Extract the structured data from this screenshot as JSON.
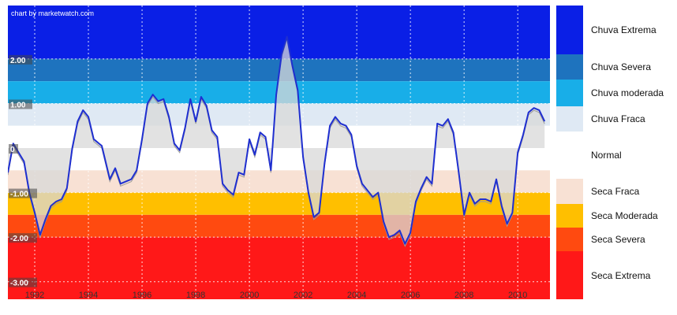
{
  "chart_data": {
    "type": "line",
    "watermark": "chart by marketwatch.com",
    "xlim": [
      1991,
      2011.2
    ],
    "ylim": [
      -3.2,
      3.2
    ],
    "x_ticks": [
      1992,
      1994,
      1996,
      1998,
      2000,
      2002,
      2004,
      2006,
      2008,
      2010
    ],
    "x_tick_labels": [
      "1992",
      "1994",
      "1996",
      "1998",
      "2000",
      "2002",
      "2004",
      "2006",
      "2008",
      "2010"
    ],
    "y_ticks": [
      2.0,
      1.0,
      0,
      -1.0,
      -2.0,
      -3.0
    ],
    "y_tick_labels": [
      "2.00",
      "1.00",
      "0",
      "-1.00",
      "-2.00",
      "-3.00"
    ],
    "grid": true,
    "bands": [
      {
        "label": "Chuva Extrema",
        "from": 2.0,
        "to": 3.2,
        "color": "#0a1fe6"
      },
      {
        "label": "Chuva Severa",
        "from": 1.5,
        "to": 2.0,
        "color": "#1e73be"
      },
      {
        "label": "Chuva moderada",
        "from": 1.0,
        "to": 1.5,
        "color": "#18aee8"
      },
      {
        "label": "Chuva Fraca",
        "from": 0.5,
        "to": 1.0,
        "color": "#dfe9f4"
      },
      {
        "label": "Normal",
        "from": -0.5,
        "to": 0.5,
        "color": "#ffffff"
      },
      {
        "label": "Seca Fraca",
        "from": -1.0,
        "to": -0.5,
        "color": "#f8e1d4"
      },
      {
        "label": "Seca Moderada",
        "from": -1.5,
        "to": -1.0,
        "color": "#ffbf00"
      },
      {
        "label": "Seca Severa",
        "from": -2.0,
        "to": -1.5,
        "color": "#ff4a10"
      },
      {
        "label": "Seca Extrema",
        "from": -3.2,
        "to": -2.0,
        "color": "#ff1818"
      }
    ],
    "series": [
      {
        "color": "#1f2fd0",
        "x": [
          1991.0,
          1991.2,
          1991.4,
          1991.6,
          1991.8,
          1992.0,
          1992.2,
          1992.4,
          1992.6,
          1992.8,
          1993.0,
          1993.2,
          1993.4,
          1993.6,
          1993.8,
          1994.0,
          1994.2,
          1994.5,
          1994.8,
          1995.0,
          1995.2,
          1995.4,
          1995.6,
          1995.8,
          1996.0,
          1996.2,
          1996.4,
          1996.6,
          1996.8,
          1997.0,
          1997.2,
          1997.4,
          1997.6,
          1997.8,
          1998.0,
          1998.2,
          1998.4,
          1998.6,
          1998.8,
          1999.0,
          1999.2,
          1999.4,
          1999.6,
          1999.8,
          2000.0,
          2000.2,
          2000.4,
          2000.6,
          2000.8,
          2001.0,
          2001.2,
          2001.4,
          2001.6,
          2001.8,
          2002.0,
          2002.2,
          2002.4,
          2002.6,
          2002.8,
          2003.0,
          2003.2,
          2003.4,
          2003.6,
          2003.8,
          2004.0,
          2004.2,
          2004.4,
          2004.6,
          2004.8,
          2005.0,
          2005.2,
          2005.4,
          2005.6,
          2005.8,
          2006.0,
          2006.2,
          2006.4,
          2006.6,
          2006.8,
          2007.0,
          2007.2,
          2007.4,
          2007.6,
          2007.8,
          2008.0,
          2008.2,
          2008.4,
          2008.6,
          2008.8,
          2009.0,
          2009.2,
          2009.4,
          2009.6,
          2009.8,
          2010.0,
          2010.2,
          2010.4,
          2010.6,
          2010.8,
          2011.0
        ],
        "y": [
          -0.55,
          0.1,
          -0.1,
          -0.3,
          -1.0,
          -1.45,
          -1.95,
          -1.6,
          -1.3,
          -1.2,
          -1.15,
          -0.9,
          0.0,
          0.6,
          0.85,
          0.7,
          0.2,
          0.05,
          -0.7,
          -0.45,
          -0.8,
          -0.75,
          -0.7,
          -0.5,
          0.2,
          1.0,
          1.2,
          1.05,
          1.1,
          0.7,
          0.1,
          -0.05,
          0.45,
          1.1,
          0.6,
          1.15,
          0.95,
          0.4,
          0.25,
          -0.8,
          -0.95,
          -1.05,
          -0.55,
          -0.6,
          0.2,
          -0.15,
          0.35,
          0.25,
          -0.5,
          1.2,
          2.1,
          2.5,
          1.85,
          1.3,
          -0.2,
          -1.0,
          -1.55,
          -1.45,
          -0.35,
          0.5,
          0.7,
          0.55,
          0.5,
          0.3,
          -0.4,
          -0.8,
          -0.95,
          -1.1,
          -1.0,
          -1.65,
          -2.0,
          -1.95,
          -1.85,
          -2.15,
          -1.9,
          -1.2,
          -0.9,
          -0.65,
          -0.8,
          0.55,
          0.5,
          0.65,
          0.35,
          -0.55,
          -1.5,
          -1.0,
          -1.25,
          -1.15,
          -1.15,
          -1.2,
          -0.7,
          -1.3,
          -1.7,
          -1.45,
          -0.1,
          0.3,
          0.8,
          0.9,
          0.85,
          0.6
        ]
      }
    ]
  }
}
